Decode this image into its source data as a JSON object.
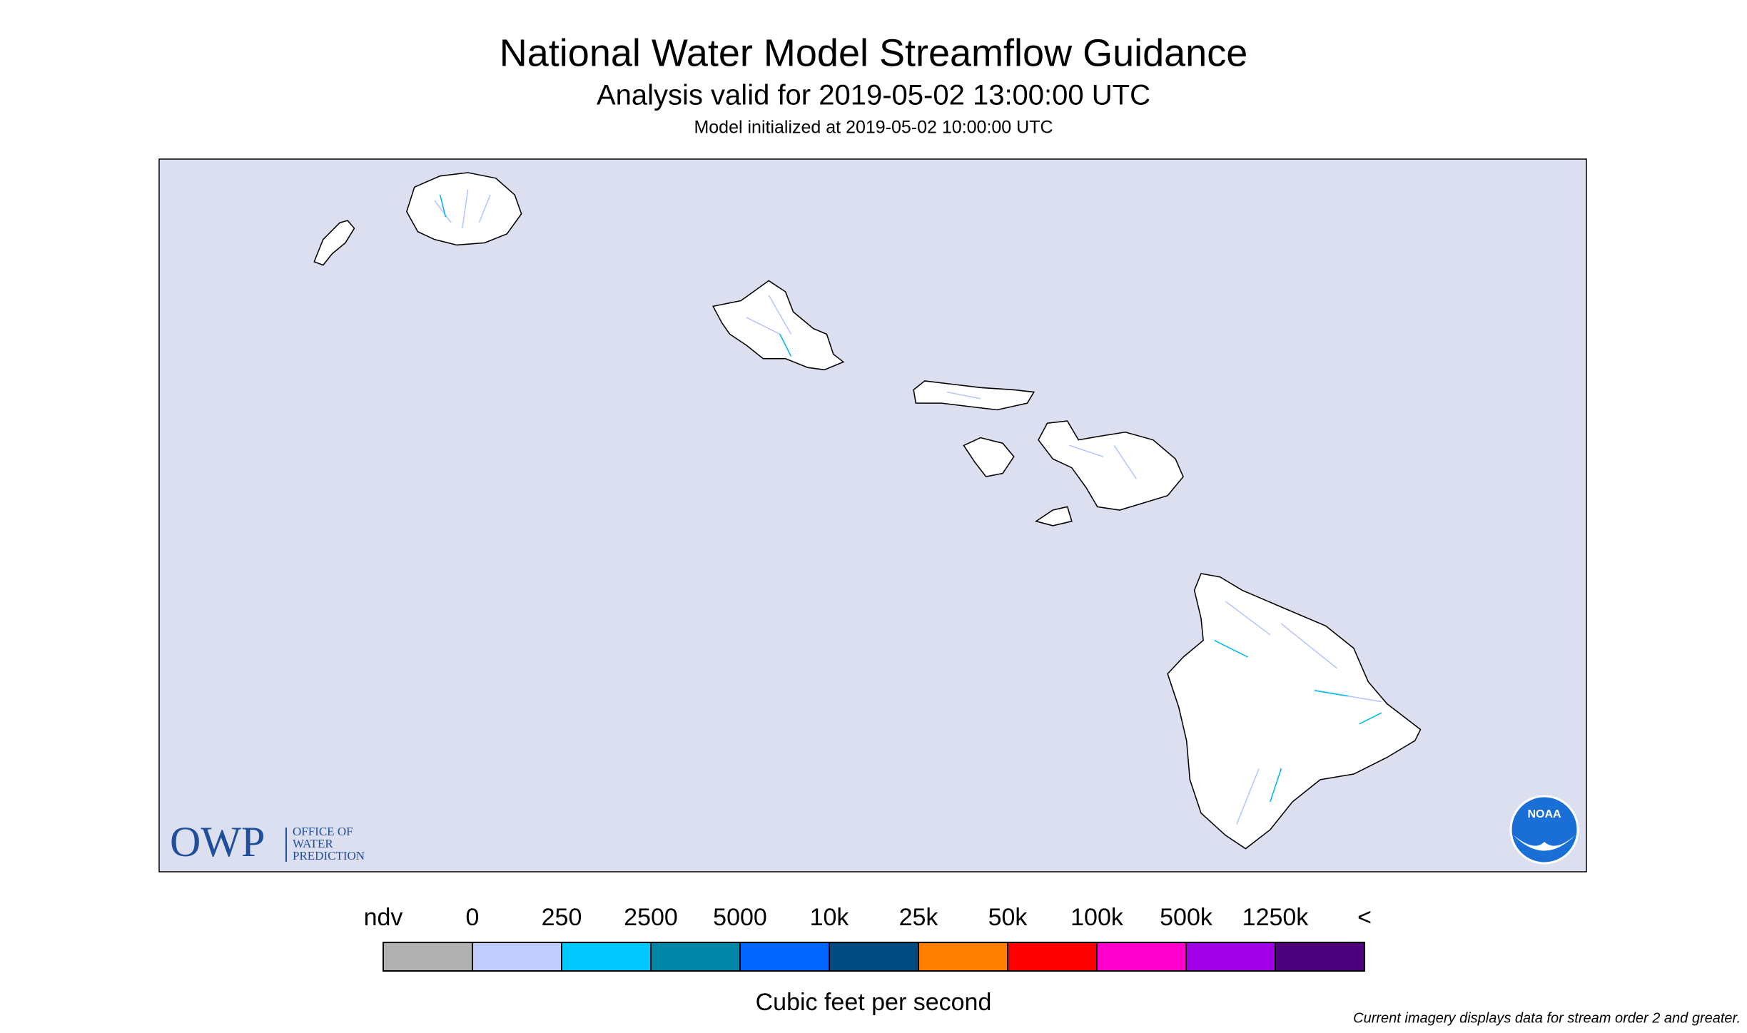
{
  "header": {
    "title": "National Water Model Streamflow Guidance",
    "subtitle": "Analysis valid for 2019-05-02 13:00:00 UTC",
    "initialized": "Model initialized at 2019-05-02 10:00:00 UTC"
  },
  "map": {
    "background": "#dcdff0",
    "land": "#ffffff",
    "logos": {
      "owp": "OWP",
      "owp_name": [
        "OFFICE OF",
        "WATER",
        "PREDICTION"
      ],
      "noaa": "NOAA"
    }
  },
  "legend": {
    "labels": [
      "ndv",
      "0",
      "250",
      "2500",
      "5000",
      "10k",
      "25k",
      "50k",
      "100k",
      "500k",
      "1250k",
      "<"
    ],
    "colors": [
      "#b0b0b0",
      "#c0ccff",
      "#00c8ff",
      "#0087a8",
      "#0066ff",
      "#004c80",
      "#ff8000",
      "#ff0000",
      "#ff00cc",
      "#a000e8",
      "#4c007c"
    ],
    "unit": "Cubic feet per second"
  },
  "footnote": "Current imagery displays data for stream order 2 and greater."
}
